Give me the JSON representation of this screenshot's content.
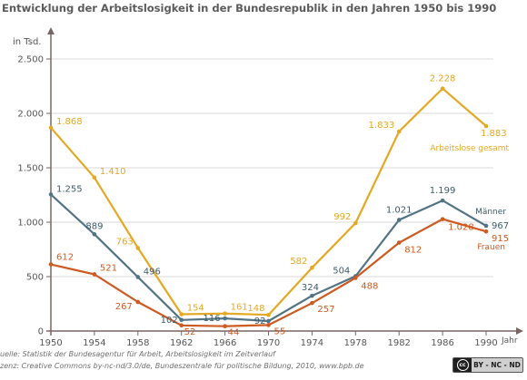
{
  "title": "Entwicklung der Arbeitslosigkeit in der Bundesrepublik in den Jahren 1950 bis 1990",
  "source_line1": "uelle: Statistik der Bundesagentur für Arbeit, Arbeitslosigkeit im Zeitverlauf",
  "source_line2": "zenz: Creative Commons by-nc-nd/3.0/de, Bundeszentrale für politische Bildung, 2010, www.bpb.de",
  "license_badge": {
    "circle": "cc",
    "label": "BY - NC - ND"
  },
  "colors": {
    "gesamt": "#e4a823",
    "maenner": "#527383",
    "frauen": "#cd5a20",
    "axis": "#7a6565",
    "grid": "#d8d8d8",
    "text": "#555555"
  },
  "chart_data": {
    "type": "line",
    "title": "Entwicklung der Arbeitslosigkeit in der Bundesrepublik in den Jahren 1950 bis 1990",
    "xlabel": "Jahr",
    "ylabel": "in Tsd.",
    "x": [
      1950,
      1954,
      1958,
      1962,
      1966,
      1970,
      1974,
      1978,
      1982,
      1986,
      1990
    ],
    "x_tick_labels": [
      "1950",
      "1954",
      "1958",
      "1962",
      "1966",
      "1970",
      "1974",
      "1978",
      "1982",
      "1986",
      "1990"
    ],
    "y_ticks": [
      0,
      500,
      1000,
      1500,
      2000,
      2500
    ],
    "y_tick_labels": [
      "0",
      "500",
      "1.000",
      "1.500",
      "2.000",
      "2.500"
    ],
    "ylim": [
      0,
      2500
    ],
    "grid": true,
    "series": [
      {
        "name": "Arbeitslose gesamt",
        "key": "gesamt",
        "values": [
          1868,
          1410,
          763,
          154,
          161,
          148,
          582,
          992,
          1833,
          2228,
          1883
        ],
        "labels": [
          "1.868",
          "1.410",
          "763",
          "154",
          "161",
          "148",
          "582",
          "992",
          "1.833",
          "2.228",
          "1.883"
        ]
      },
      {
        "name": "Männer",
        "key": "maenner",
        "values": [
          1255,
          889,
          496,
          102,
          116,
          92,
          324,
          504,
          1021,
          1199,
          967
        ],
        "labels": [
          "1.255",
          "889",
          "496",
          "102",
          "116",
          "92",
          "324",
          "504",
          "1.021",
          "1.199",
          "967"
        ]
      },
      {
        "name": "Frauen",
        "key": "frauen",
        "values": [
          612,
          521,
          267,
          52,
          44,
          55,
          257,
          488,
          812,
          1028,
          915
        ],
        "labels": [
          "612",
          "521",
          "267",
          "52",
          "44",
          "55",
          "257",
          "488",
          "812",
          "1.028",
          "915"
        ]
      }
    ]
  }
}
